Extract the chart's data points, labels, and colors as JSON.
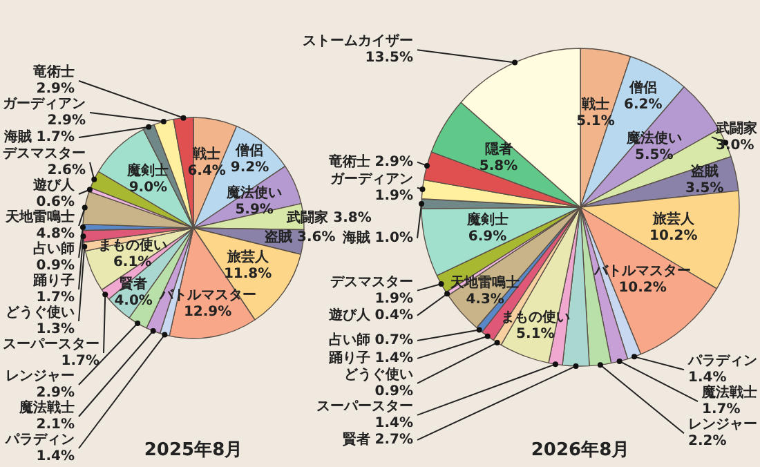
{
  "chart_data": [
    {
      "type": "pie",
      "title": "2025年8月",
      "categories": [
        "戦士",
        "僧侶",
        "魔法使い",
        "武闘家",
        "盗賊",
        "旅芸人",
        "バトルマスター",
        "パラディン",
        "魔法戦士",
        "レンジャー",
        "賢者",
        "スーパースター",
        "まもの使い",
        "どうぐ使い",
        "踊り子",
        "占い師",
        "天地雷鳴士",
        "遊び人",
        "デスマスター",
        "魔剣士",
        "海賊",
        "ガーディアン",
        "竜術士"
      ],
      "values": [
        6.4,
        9.2,
        5.9,
        3.8,
        3.6,
        11.8,
        12.9,
        1.4,
        2.1,
        2.9,
        4.0,
        1.7,
        6.1,
        1.3,
        1.7,
        0.9,
        4.8,
        0.6,
        2.6,
        9.0,
        1.7,
        2.9,
        2.9
      ],
      "value_labels": [
        "6.4%",
        "9.2%",
        "5.9%",
        "3.8%",
        "3.6%",
        "11.8%",
        "12.9%",
        "1.4%",
        "2.1%",
        "2.9%",
        "4.0%",
        "1.7%",
        "6.1%",
        "1.3%",
        "1.7%",
        "0.9%",
        "4.8%",
        "0.6%",
        "2.6%",
        "9.0%",
        "1.7%",
        "2.9%",
        "2.9%"
      ],
      "colors": [
        "#f2b48a",
        "#b8d8f0",
        "#b49ad0",
        "#d8e8a8",
        "#8a82a8",
        "#fdd68a",
        "#f8a888",
        "#c8d8f0",
        "#c8a0d8",
        "#b8e0a8",
        "#a8d8d0",
        "#f0a8d0",
        "#e8e8b0",
        "#f8d0a0",
        "#e05878",
        "#5888c8",
        "#c8b488",
        "#f0b8e0",
        "#a8b830",
        "#a0e0cc",
        "#708888",
        "#fff0a0",
        "#e05050"
      ]
    },
    {
      "type": "pie",
      "title": "2026年8月",
      "categories": [
        "戦士",
        "僧侶",
        "魔法使い",
        "武闘家",
        "盗賊",
        "旅芸人",
        "バトルマスター",
        "パラディン",
        "魔法戦士",
        "レンジャー",
        "賢者",
        "スーパースター",
        "まもの使い",
        "どうぐ使い",
        "踊り子",
        "占い師",
        "天地雷鳴士",
        "遊び人",
        "デスマスター",
        "魔剣士",
        "海賊",
        "ガーディアン",
        "竜術士",
        "隠者",
        "ストームカイザー"
      ],
      "values": [
        5.1,
        6.2,
        5.5,
        3.0,
        3.5,
        10.2,
        10.2,
        1.4,
        1.7,
        2.2,
        2.7,
        1.4,
        5.1,
        0.9,
        1.4,
        0.7,
        4.3,
        0.4,
        1.9,
        6.9,
        1.0,
        1.9,
        2.9,
        5.8,
        13.5
      ],
      "value_labels": [
        "5.1%",
        "6.2%",
        "5.5%",
        "3.0%",
        "3.5%",
        "10.2%",
        "10.2%",
        "1.4%",
        "1.7%",
        "2.2%",
        "2.7%",
        "1.4%",
        "5.1%",
        "0.9%",
        "1.4%",
        "0.7%",
        "4.3%",
        "0.4%",
        "1.9%",
        "6.9%",
        "1.0%",
        "1.9%",
        "2.9%",
        "5.8%",
        "13.5%"
      ],
      "colors": [
        "#f2b48a",
        "#b8d8f0",
        "#b49ad0",
        "#d8e8a8",
        "#8a82a8",
        "#fdd68a",
        "#f8a888",
        "#c8d8f0",
        "#c8a0d8",
        "#b8e0a8",
        "#a8d8d0",
        "#f0a8d0",
        "#e8e8b0",
        "#f8d0a0",
        "#e05878",
        "#5888c8",
        "#c8b488",
        "#f0b8e0",
        "#a8b830",
        "#a0e0cc",
        "#708888",
        "#fff0a0",
        "#e05050",
        "#60c888",
        "#fffce0"
      ]
    }
  ]
}
